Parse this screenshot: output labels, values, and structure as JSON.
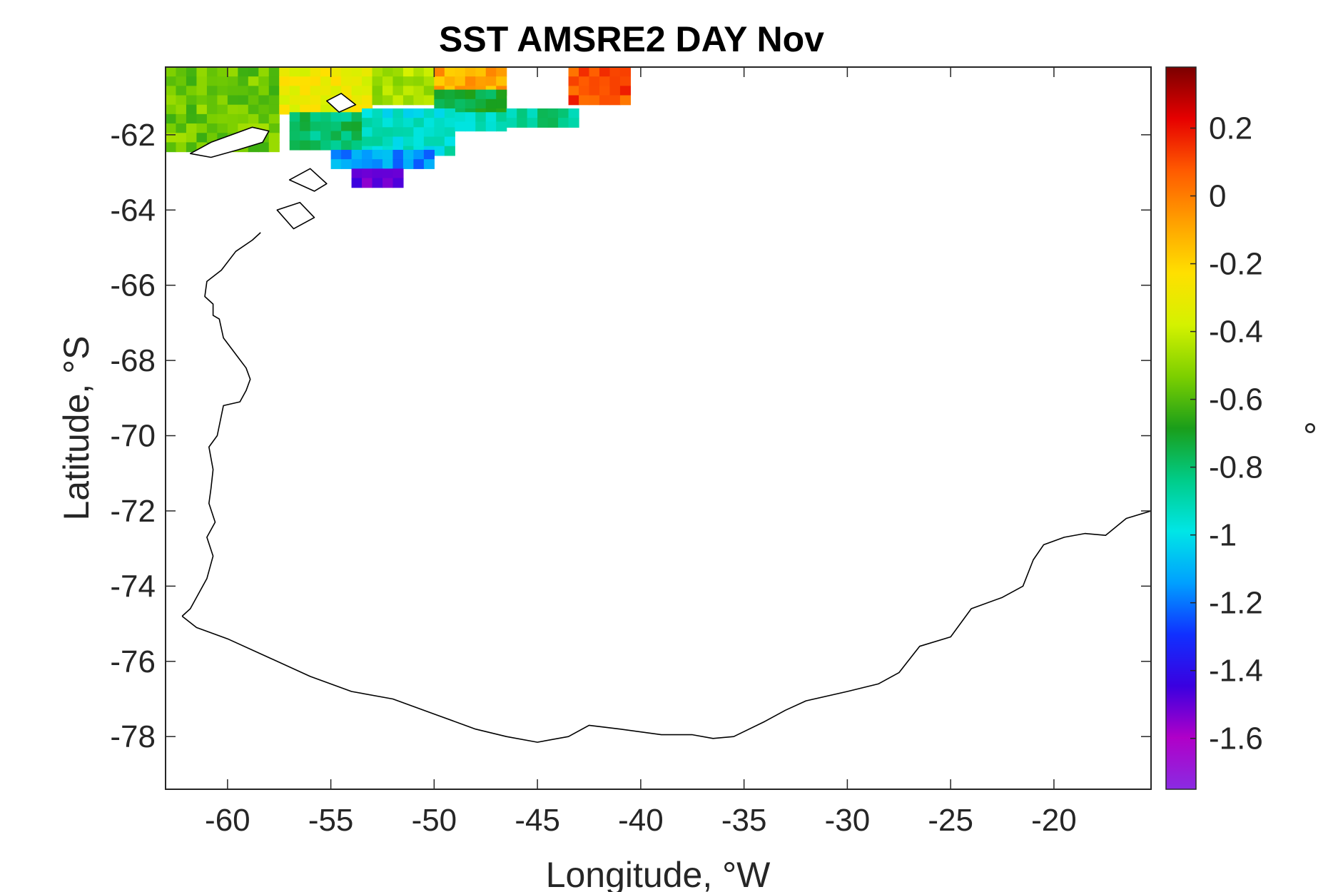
{
  "chart_data": {
    "type": "heatmap",
    "title": "SST AMSRE2 DAY Nov",
    "xlabel": "Longitude, °W",
    "ylabel": "Latitude, °S",
    "xlim": [
      -63,
      -15.3
    ],
    "ylim": [
      -79.4,
      -60.2
    ],
    "xticks": [
      -60,
      -55,
      -50,
      -45,
      -40,
      -35,
      -30,
      -25,
      -20
    ],
    "yticks": [
      -62,
      -64,
      -66,
      -68,
      -70,
      -72,
      -74,
      -76,
      -78
    ],
    "grid": false,
    "colorbar": {
      "label": "°",
      "clim": [
        -1.75,
        0.38
      ],
      "ticks": [
        0.2,
        0,
        -0.2,
        -0.4,
        -0.6,
        -0.8,
        -1,
        -1.2,
        -1.4,
        -1.6
      ],
      "colormap": [
        "#7b0000",
        "#e60000",
        "#ff5a00",
        "#ffa000",
        "#ffe000",
        "#d4f200",
        "#7ccf00",
        "#1a9e1a",
        "#00cc88",
        "#00e6e6",
        "#00a0ff",
        "#1030ff",
        "#3a00e0",
        "#b000c8",
        "#8a2be2"
      ]
    },
    "cell_size": {
      "dlon": 0.5,
      "dlat": 0.25
    },
    "sst_regions": [
      {
        "lon": [
          -63,
          -57.5
        ],
        "lat": [
          -62.4,
          -60.2
        ],
        "value": -0.55
      },
      {
        "lon": [
          -57.5,
          -53
        ],
        "lat": [
          -61.4,
          -60.2
        ],
        "value": -0.3
      },
      {
        "lon": [
          -53,
          -50
        ],
        "lat": [
          -61.0,
          -60.2
        ],
        "value": -0.45
      },
      {
        "lon": [
          -50,
          -46.5
        ],
        "lat": [
          -60.8,
          -60.2
        ],
        "value": -0.1
      },
      {
        "lon": [
          -50,
          -46.5
        ],
        "lat": [
          -61.5,
          -60.8
        ],
        "value": -0.75
      },
      {
        "lon": [
          -43.5,
          -40.5
        ],
        "lat": [
          -61.1,
          -60.2
        ],
        "value": 0.1
      },
      {
        "lon": [
          -57,
          -53.5
        ],
        "lat": [
          -62.4,
          -61.4
        ],
        "value": -0.8
      },
      {
        "lon": [
          -53.5,
          -49
        ],
        "lat": [
          -62.4,
          -61.3
        ],
        "value": -0.95
      },
      {
        "lon": [
          -49,
          -46.5
        ],
        "lat": [
          -61.8,
          -61.4
        ],
        "value": -0.9
      },
      {
        "lon": [
          -55,
          -50
        ],
        "lat": [
          -62.9,
          -62.4
        ],
        "value": -1.15
      },
      {
        "lon": [
          -54,
          -51.5
        ],
        "lat": [
          -63.2,
          -62.9
        ],
        "value": -1.5
      },
      {
        "lon": [
          -46.5,
          -43
        ],
        "lat": [
          -61.7,
          -61.3
        ],
        "value": -0.85
      }
    ],
    "coastline": {
      "lon": [
        -62.2,
        -61.5,
        -60,
        -58,
        -56,
        -54,
        -52,
        -50,
        -48,
        -46.5,
        -45,
        -43.5,
        -42.5,
        -41,
        -39,
        -37.5,
        -36.5,
        -35.5,
        -34,
        -33,
        -32,
        -30,
        -28.5,
        -27.5,
        -26.5,
        -25,
        -24,
        -22.5,
        -21.5,
        -21,
        -20.5,
        -19.5,
        -18.5,
        -17.5,
        -16.5,
        -15.3
      ],
      "lat": [
        -74.8,
        -75.1,
        -75.4,
        -75.9,
        -76.4,
        -76.8,
        -77.0,
        -77.4,
        -77.8,
        -78.0,
        -78.15,
        -78.0,
        -77.7,
        -77.8,
        -77.95,
        -77.95,
        -78.05,
        -78.0,
        -77.6,
        -77.3,
        -77.05,
        -76.8,
        -76.6,
        -76.3,
        -75.6,
        -75.35,
        -74.6,
        -74.3,
        -74.0,
        -73.3,
        -72.9,
        -72.7,
        -72.6,
        -72.65,
        -72.2,
        -72.0
      ]
    },
    "peninsula_coast": {
      "lon": [
        -62.2,
        -61.8,
        -61.4,
        -61.0,
        -60.7,
        -61.0,
        -60.6,
        -60.9,
        -60.8,
        -60.7,
        -60.9,
        -60.5,
        -60.2,
        -59.4,
        -59.1,
        -58.9,
        -59.1,
        -59.1,
        -60.2,
        -60.4,
        -60.7,
        -60.7,
        -61.1,
        -61.0,
        -60.3,
        -59.6,
        -58.8,
        -58.4
      ],
      "lat": [
        -74.8,
        -74.6,
        -74.2,
        -73.8,
        -73.2,
        -72.7,
        -72.3,
        -71.8,
        -71.4,
        -70.9,
        -70.3,
        -70.0,
        -69.2,
        -69.1,
        -68.8,
        -68.5,
        -68.2,
        -68.2,
        -67.4,
        -66.9,
        -66.8,
        -66.5,
        -66.3,
        -65.9,
        -65.6,
        -65.1,
        -64.8,
        -64.6
      ]
    },
    "islands": [
      {
        "lon": [
          -61.8,
          -60.8,
          -59.8,
          -58.8,
          -58.0,
          -58.3,
          -59.5,
          -60.8,
          -61.8
        ],
        "lat": [
          -62.5,
          -62.2,
          -62.0,
          -61.8,
          -61.9,
          -62.2,
          -62.4,
          -62.6,
          -62.5
        ]
      },
      {
        "lon": [
          -57.0,
          -56.0,
          -55.2,
          -55.8,
          -57.0
        ],
        "lat": [
          -63.2,
          -62.9,
          -63.3,
          -63.5,
          -63.2
        ]
      },
      {
        "lon": [
          -57.6,
          -56.5,
          -55.8,
          -56.8,
          -57.6
        ],
        "lat": [
          -64.0,
          -63.8,
          -64.2,
          -64.5,
          -64.0
        ]
      },
      {
        "lon": [
          -55.2,
          -54.5,
          -53.8,
          -54.6,
          -55.2
        ],
        "lat": [
          -61.1,
          -60.9,
          -61.2,
          -61.4,
          -61.1
        ]
      }
    ]
  }
}
